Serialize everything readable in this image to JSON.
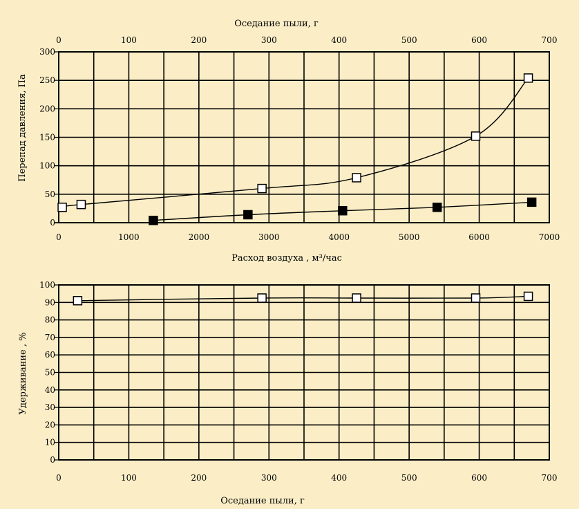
{
  "colors": {
    "background": "#fbeec7",
    "axis": "#000000",
    "grid": "#000000",
    "marker_open_fill": "#ffffff",
    "marker_filled": "#000000"
  },
  "chart_data": [
    {
      "type": "scatter",
      "title": "",
      "xlabel": "Расход воздуха , м³/час",
      "x2label": "Оседание пыли, г",
      "ylabel": "Перепад давления, Па",
      "xlim": [
        0,
        7000
      ],
      "x2lim": [
        0,
        700
      ],
      "ylim": [
        0,
        300
      ],
      "xticks": [
        0,
        1000,
        2000,
        3000,
        4000,
        5000,
        6000,
        7000
      ],
      "x2ticks": [
        0,
        100,
        200,
        300,
        400,
        500,
        600,
        700
      ],
      "yticks": [
        0,
        50,
        100,
        150,
        200,
        250,
        300
      ],
      "grid": true,
      "series": [
        {
          "marker": "open-square",
          "axis": "x2",
          "x": [
            5,
            32,
            290,
            425,
            595,
            670
          ],
          "y": [
            27,
            32,
            60,
            79,
            152,
            254
          ]
        },
        {
          "marker": "filled-square",
          "axis": "x",
          "x": [
            1350,
            2700,
            4050,
            5400,
            6750
          ],
          "y": [
            4,
            14,
            21,
            27,
            36
          ]
        }
      ]
    },
    {
      "type": "scatter",
      "title": "",
      "xlabel": "Оседание пыли, г",
      "ylabel": "Удерживание , %",
      "xlim": [
        0,
        700
      ],
      "ylim": [
        0,
        100
      ],
      "xticks": [
        0,
        100,
        200,
        300,
        400,
        500,
        600,
        700
      ],
      "yticks": [
        0,
        10,
        20,
        30,
        40,
        50,
        60,
        70,
        80,
        90,
        100
      ],
      "grid": true,
      "series": [
        {
          "marker": "open-square",
          "x": [
            27,
            290,
            425,
            595,
            670
          ],
          "y": [
            91,
            92.5,
            92.5,
            92.5,
            93.5
          ]
        }
      ]
    }
  ]
}
